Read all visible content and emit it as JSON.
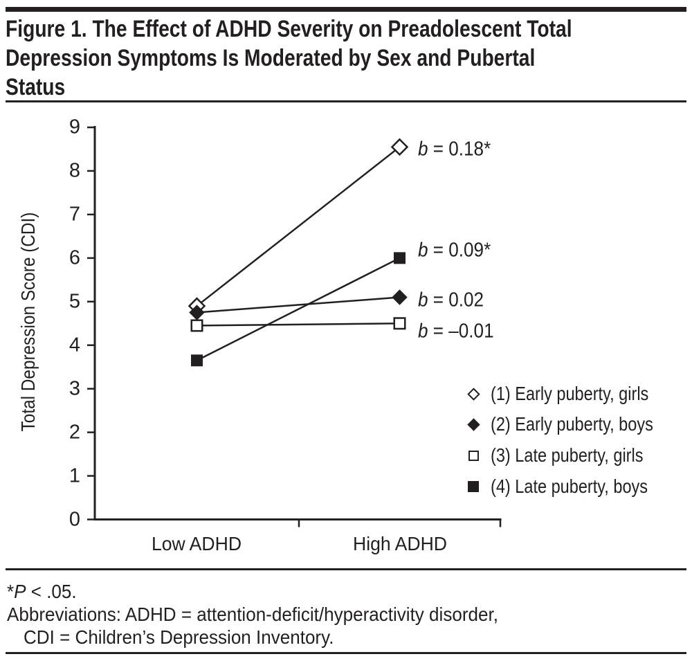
{
  "figure": {
    "title_lines": [
      "Figure 1. The Effect of ADHD Severity on Preadolescent Total",
      "Depression Symptoms Is Moderated by Sex and Pubertal",
      "Status"
    ]
  },
  "chart_data": {
    "type": "line",
    "title": "Figure 1. The Effect of ADHD Severity on Preadolescent Total Depression Symptoms Is Moderated by Sex and Pubertal Status",
    "categories": [
      "Low ADHD",
      "High ADHD"
    ],
    "xlabel": "",
    "ylabel": "Total Depression Score (CDI)",
    "ylim": [
      0,
      9
    ],
    "yticks": [
      0,
      1,
      2,
      3,
      4,
      5,
      6,
      7,
      8,
      9
    ],
    "grid": false,
    "legend_position": "lower-right-inside",
    "ink_color": "#231f20",
    "series": [
      {
        "name": "(1) Early puberty, girls",
        "marker": "diamond-open",
        "values": [
          4.9,
          8.55
        ],
        "slope_var": "b",
        "slope_rest": " = 0.18*",
        "label_dy": 4
      },
      {
        "name": "(2) Early puberty, boys",
        "marker": "diamond-filled",
        "values": [
          4.75,
          5.1
        ],
        "slope_var": "b",
        "slope_rest": " = 0.02",
        "label_dy": 5
      },
      {
        "name": "(3) Late puberty, girls",
        "marker": "square-open",
        "values": [
          4.45,
          4.5
        ],
        "slope_var": "b",
        "slope_rest": " = –0.01",
        "label_dy": 12
      },
      {
        "name": "(4) Late puberty, boys",
        "marker": "square-filled",
        "values": [
          3.65,
          6.0
        ],
        "slope_var": "b",
        "slope_rest": " = 0.09*",
        "label_dy": -11
      }
    ]
  },
  "footnote": {
    "star": "*",
    "var": "P",
    "rest": " < .05.",
    "abbrev_line1": "Abbreviations: ADHD = attention-deficit/hyperactivity disorder,",
    "abbrev_line2": "CDI = Children’s Depression Inventory."
  }
}
